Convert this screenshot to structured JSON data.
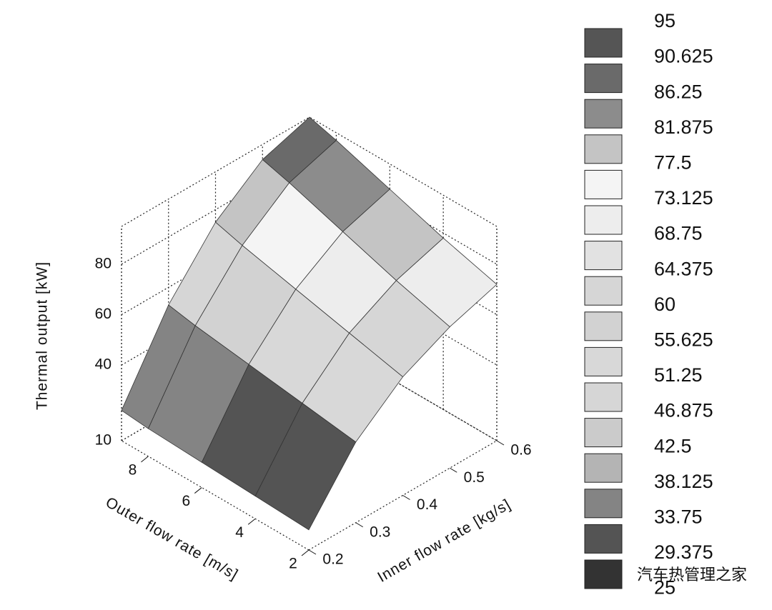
{
  "chart_data": {
    "type": "surface",
    "xlabel": "Outer flow rate [m/s]",
    "ylabel": "Inner flow rate [kg/s]",
    "zlabel": "Thermal output [kW]",
    "x": [
      2,
      4,
      6,
      8,
      9
    ],
    "y": [
      0.2,
      0.3,
      0.4,
      0.5,
      0.6
    ],
    "z": [
      [
        18,
        19,
        20,
        21,
        22
      ],
      [
        42,
        45,
        48,
        51,
        53
      ],
      [
        57,
        62,
        67,
        72,
        75
      ],
      [
        66,
        72,
        79,
        86,
        89
      ],
      [
        72,
        78,
        85,
        92,
        95
      ]
    ],
    "xlim": [
      2,
      9
    ],
    "ylim": [
      0.2,
      0.6
    ],
    "zlim": [
      10,
      95
    ],
    "xticks": [
      2,
      4,
      6,
      8
    ],
    "yticks": [
      0.2,
      0.3,
      0.4,
      0.5,
      0.6
    ],
    "zticks": [
      10,
      40,
      60,
      80
    ],
    "colorbar": {
      "levels": [
        95,
        90.625,
        86.25,
        81.875,
        77.5,
        73.125,
        68.75,
        64.375,
        60,
        55.625,
        51.25,
        46.875,
        42.5,
        38.125,
        33.75,
        29.375,
        25
      ],
      "colors": [
        "#555555",
        "#6a6a6a",
        "#8c8c8c",
        "#c4c4c4",
        "#f4f4f4",
        "#ededed",
        "#e2e2e2",
        "#d6d6d6",
        "#d2d2d2",
        "#d8d8d8",
        "#d6d6d6",
        "#cbcbcb",
        "#b4b4b4",
        "#848484",
        "#545454",
        "#333333"
      ]
    },
    "watermark": "汽车热管理之家"
  }
}
